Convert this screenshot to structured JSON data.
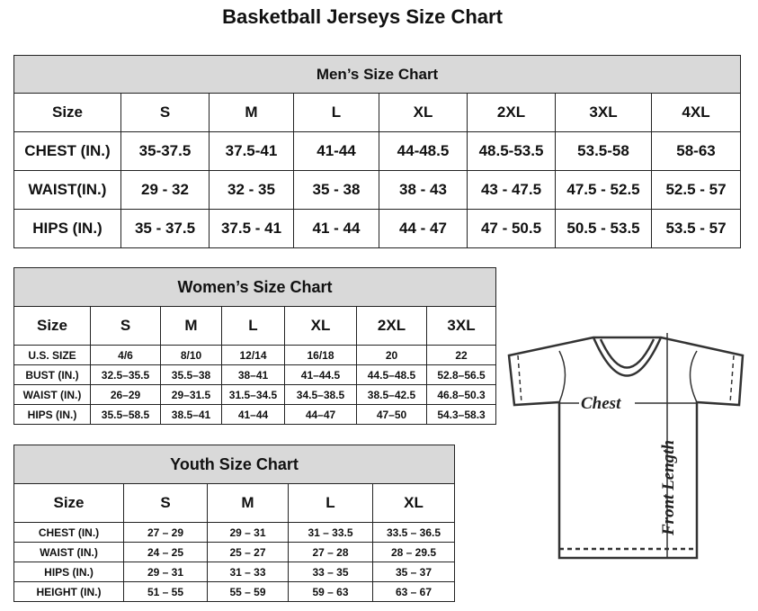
{
  "title": "Basketball Jerseys Size Chart",
  "men": {
    "title": "Men’s Size Chart",
    "header": [
      "Size",
      "S",
      "M",
      "L",
      "XL",
      "2XL",
      "3XL",
      "4XL"
    ],
    "rows": [
      [
        "CHEST (IN.)",
        "35-37.5",
        "37.5-41",
        "41-44",
        "44-48.5",
        "48.5-53.5",
        "53.5-58",
        "58-63"
      ],
      [
        "WAIST(IN.)",
        "29 - 32",
        "32 - 35",
        "35 - 38",
        "38 - 43",
        "43 - 47.5",
        "47.5 - 52.5",
        "52.5 - 57"
      ],
      [
        "HIPS (IN.)",
        "35 - 37.5",
        "37.5 - 41",
        "41 - 44",
        "44 - 47",
        "47 - 50.5",
        "50.5 - 53.5",
        "53.5 - 57"
      ]
    ]
  },
  "women": {
    "title": "Women’s Size Chart",
    "header": [
      "Size",
      "S",
      "M",
      "L",
      "XL",
      "2XL",
      "3XL"
    ],
    "rows": [
      [
        "U.S. SIZE",
        "4/6",
        "8/10",
        "12/14",
        "16/18",
        "20",
        "22"
      ],
      [
        "BUST (IN.)",
        "32.5–35.5",
        "35.5–38",
        "38–41",
        "41–44.5",
        "44.5–48.5",
        "52.8–56.5"
      ],
      [
        "WAIST (IN.)",
        "26–29",
        "29–31.5",
        "31.5–34.5",
        "34.5–38.5",
        "38.5–42.5",
        "46.8–50.3"
      ],
      [
        "HIPS (IN.)",
        "35.5–58.5",
        "38.5–41",
        "41–44",
        "44–47",
        "47–50",
        "54.3–58.3"
      ]
    ]
  },
  "youth": {
    "title": "Youth Size Chart",
    "header": [
      "Size",
      "S",
      "M",
      "L",
      "XL"
    ],
    "rows": [
      [
        "CHEST (IN.)",
        "27 – 29",
        "29 – 31",
        "31 – 33.5",
        "33.5 – 36.5"
      ],
      [
        "WAIST (IN.)",
        "24 – 25",
        "25 – 27",
        "27 – 28",
        "28 – 29.5"
      ],
      [
        "HIPS (IN.)",
        "29 – 31",
        "31 – 33",
        "33 – 35",
        "35 – 37"
      ],
      [
        "HEIGHT (IN.)",
        "51 – 55",
        "55 – 59",
        "59 – 63",
        "63 – 67"
      ]
    ]
  },
  "diagram": {
    "chest_label": "Chest",
    "length_label": "Front Length"
  }
}
